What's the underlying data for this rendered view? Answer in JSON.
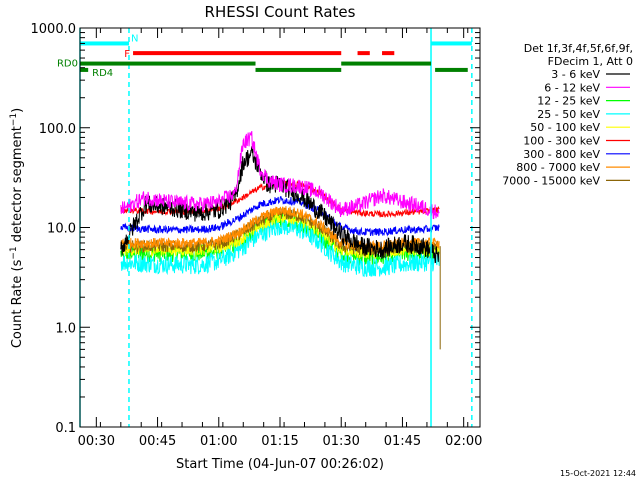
{
  "chart_data": {
    "type": "line",
    "title": "RHESSI Count Rates",
    "xlabel": "Start Time (04-Jun-07 00:26:02)",
    "ylabel_main": "Count Rate (s",
    "ylabel_sup1": "−1",
    "ylabel_mid": " detector segment",
    "ylabel_sup2": "−1",
    "ylabel_end": ")",
    "y_scale": "log",
    "ylim": [
      0.1,
      1000
    ],
    "xlim": [
      "00:26",
      "02:04"
    ],
    "x_ticks": [
      "00:30",
      "00:45",
      "01:00",
      "01:15",
      "01:30",
      "01:45",
      "02:00"
    ],
    "y_ticks": [
      "0.1",
      "1.0",
      "10.0",
      "100.0",
      "1000.0"
    ],
    "legend_header": [
      "Det 1f,3f,4f,5f,6f,9f,",
      "FDecim 1, Att 0"
    ],
    "legend_placement": "right",
    "data_start": "00:36",
    "data_end": "01:54",
    "series": [
      {
        "name": "3 - 6 keV",
        "color": "#000000",
        "x": [
          "00:36",
          "00:42",
          "00:48",
          "00:55",
          "01:00",
          "01:04",
          "01:06",
          "01:08",
          "01:10",
          "01:12",
          "01:15",
          "01:20",
          "01:25",
          "01:30",
          "01:35",
          "01:40",
          "01:45",
          "01:50",
          "01:54"
        ],
        "values": [
          6,
          17,
          16,
          14,
          15,
          20,
          45,
          55,
          38,
          27,
          27,
          21,
          14,
          8.5,
          6.5,
          6,
          7,
          6.5,
          5
        ]
      },
      {
        "name": "6 - 12 keV",
        "color": "#ff00ff",
        "x": [
          "00:36",
          "00:42",
          "00:48",
          "00:55",
          "01:00",
          "01:04",
          "01:06",
          "01:08",
          "01:10",
          "01:12",
          "01:15",
          "01:20",
          "01:25",
          "01:30",
          "01:35",
          "01:40",
          "01:45",
          "01:50",
          "01:54"
        ],
        "values": [
          15,
          20,
          18,
          17,
          18,
          22,
          70,
          80,
          40,
          30,
          27,
          26,
          22,
          15,
          17,
          21,
          18,
          16,
          14
        ]
      },
      {
        "name": "12 - 25 keV",
        "color": "#00ff00",
        "x": [
          "00:36",
          "00:45",
          "00:55",
          "01:00",
          "01:05",
          "01:10",
          "01:15",
          "01:20",
          "01:25",
          "01:30",
          "01:35",
          "01:40",
          "01:45",
          "01:50",
          "01:54"
        ],
        "values": [
          5.5,
          5.5,
          5.5,
          5.8,
          7,
          10,
          12.5,
          11,
          8,
          5.5,
          5,
          5,
          5.5,
          5.5,
          5.5
        ]
      },
      {
        "name": "25 - 50 keV",
        "color": "#00ffff",
        "x": [
          "00:36",
          "00:45",
          "00:55",
          "01:00",
          "01:05",
          "01:10",
          "01:15",
          "01:20",
          "01:25",
          "01:30",
          "01:35",
          "01:40",
          "01:45",
          "01:50",
          "01:54"
        ],
        "values": [
          4.5,
          4.3,
          4.2,
          4.6,
          6,
          8.5,
          10.5,
          9.5,
          7,
          4.5,
          4,
          4,
          4.3,
          4.5,
          4.5
        ]
      },
      {
        "name": "50 - 100 keV",
        "color": "#ffff00",
        "x": [
          "00:36",
          "00:45",
          "00:55",
          "01:00",
          "01:05",
          "01:10",
          "01:15",
          "01:20",
          "01:25",
          "01:30",
          "01:35",
          "01:40",
          "01:45",
          "01:50",
          "01:54"
        ],
        "values": [
          6,
          6,
          6,
          6.3,
          7.5,
          10.5,
          13,
          12,
          9,
          6,
          5.6,
          5.6,
          6,
          6,
          6
        ]
      },
      {
        "name": "100 - 300 keV",
        "color": "#ff0000",
        "x": [
          "00:36",
          "00:45",
          "00:55",
          "01:00",
          "01:05",
          "01:10",
          "01:15",
          "01:20",
          "01:25",
          "01:30",
          "01:35",
          "01:40",
          "01:45",
          "01:50",
          "01:54"
        ],
        "values": [
          15,
          14.5,
          14.5,
          15.5,
          19,
          25,
          28,
          27,
          22,
          15,
          14,
          13.5,
          14,
          14.5,
          15
        ]
      },
      {
        "name": "300 - 800 keV",
        "color": "#0000ff",
        "x": [
          "00:36",
          "00:45",
          "00:55",
          "01:00",
          "01:05",
          "01:10",
          "01:15",
          "01:20",
          "01:25",
          "01:30",
          "01:35",
          "01:40",
          "01:45",
          "01:50",
          "01:54"
        ],
        "values": [
          10,
          9.5,
          9.5,
          10,
          12.5,
          17,
          19,
          18,
          14.5,
          10,
          9,
          9,
          9.5,
          9.5,
          10
        ]
      },
      {
        "name": "800 - 7000 keV",
        "color": "#ff8c00",
        "x": [
          "00:36",
          "00:45",
          "00:55",
          "01:00",
          "01:05",
          "01:10",
          "01:15",
          "01:20",
          "01:25",
          "01:30",
          "01:35",
          "01:40",
          "01:45",
          "01:50",
          "01:54"
        ],
        "values": [
          7,
          7,
          7,
          7.3,
          9,
          12.5,
          15,
          14,
          10.5,
          7,
          6.5,
          6.5,
          7,
          7,
          7
        ]
      },
      {
        "name": "7000 - 15000 keV",
        "color": "#8b6508",
        "x": [
          "00:36",
          "00:45",
          "00:55",
          "01:00",
          "01:05",
          "01:10",
          "01:15",
          "01:20",
          "01:25",
          "01:30",
          "01:35",
          "01:40",
          "01:45",
          "01:50",
          "01:54"
        ],
        "values": [
          6.5,
          6.5,
          6.5,
          6.8,
          8.5,
          11.5,
          14,
          13,
          10,
          6.5,
          6,
          6,
          6.5,
          6.5,
          6.5
        ]
      }
    ],
    "flags": [
      {
        "label": "N",
        "color": "#00ffff",
        "value": 700,
        "segments": [
          [
            "00:26",
            "00:38"
          ],
          [
            "01:52",
            "02:02"
          ]
        ]
      },
      {
        "label": "F",
        "color": "#ff0000",
        "value": 560,
        "segments": [
          [
            "00:39",
            "01:30"
          ],
          [
            "01:34",
            "01:37"
          ],
          [
            "01:40",
            "01:43"
          ]
        ]
      },
      {
        "label": "RD0",
        "color": "#008000",
        "value": 440,
        "segments": [
          [
            "00:26",
            "01:09"
          ],
          [
            "01:30",
            "01:52"
          ]
        ]
      },
      {
        "label": "RD4",
        "color": "#008000",
        "value": 380,
        "segments": [
          [
            "00:26",
            "00:28"
          ],
          [
            "01:09",
            "01:30"
          ],
          [
            "01:53",
            "02:01"
          ]
        ]
      }
    ],
    "vertical_lines": [
      {
        "x": "00:26",
        "color": "#00ffff",
        "style": "solid"
      },
      {
        "x": "00:38",
        "color": "#00ffff",
        "style": "dashed"
      },
      {
        "x": "01:52",
        "color": "#00ffff",
        "style": "solid"
      },
      {
        "x": "02:02",
        "color": "#00ffff",
        "style": "dashed"
      }
    ],
    "footer": "15-Oct-2021 12:44"
  }
}
